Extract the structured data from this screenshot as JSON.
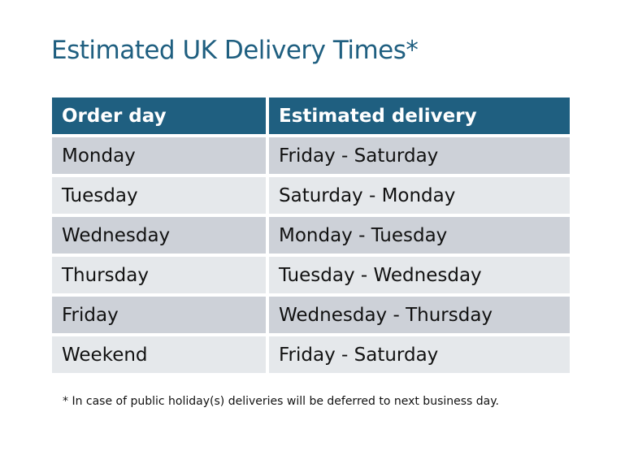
{
  "title": "Estimated UK Delivery Times*",
  "colors": {
    "header": "#1f5f80",
    "row_odd": "#cdd1d8",
    "row_even": "#e5e8eb"
  },
  "table": {
    "headers": [
      "Order day",
      "Estimated delivery"
    ],
    "rows": [
      [
        "Monday",
        "Friday - Saturday"
      ],
      [
        "Tuesday",
        "Saturday - Monday"
      ],
      [
        "Wednesday",
        "Monday - Tuesday"
      ],
      [
        "Thursday",
        "Tuesday - Wednesday"
      ],
      [
        "Friday",
        "Wednesday - Thursday"
      ],
      [
        "Weekend",
        "Friday - Saturday"
      ]
    ]
  },
  "footnote": "* In case of public holiday(s) deliveries will be deferred to next business day."
}
